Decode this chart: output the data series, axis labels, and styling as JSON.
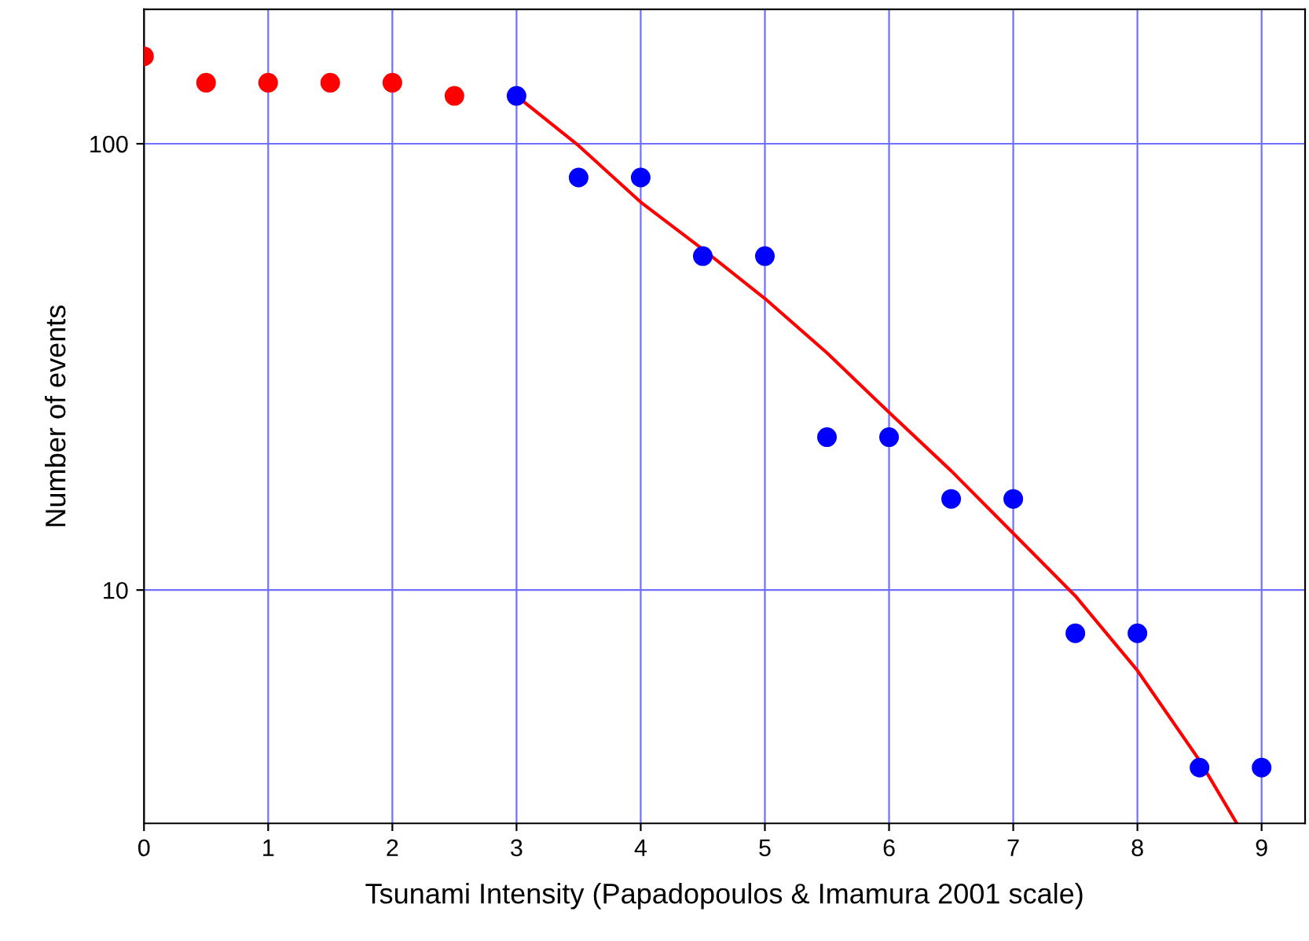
{
  "chart_data": {
    "type": "scatter",
    "xlabel": "Tsunami Intensity (Papadopoulos & Imamura 2001 scale)",
    "ylabel": "Number of events",
    "log": "y",
    "xlim": [
      0,
      9.35
    ],
    "ylim": [
      3,
      200
    ],
    "xticks": [
      0,
      1,
      2,
      3,
      4,
      5,
      6,
      7,
      8,
      9
    ],
    "yticks": [
      10,
      100
    ],
    "grid": true,
    "marker": "circle",
    "series": [
      {
        "color": "#ff0000",
        "x": [
          0,
          0.5,
          1,
          1.5,
          2,
          2.5
        ],
        "values": [
          157,
          137,
          137,
          137,
          137,
          128
        ]
      },
      {
        "color": "#0000ff",
        "x": [
          3,
          3.5,
          4,
          4.5,
          5,
          5.5,
          6,
          6.5,
          7,
          7.5,
          8,
          8.5,
          9
        ],
        "values": [
          128,
          84,
          84,
          56,
          56,
          22,
          22,
          16,
          16,
          8,
          8,
          4,
          4
        ]
      },
      {
        "type": "line",
        "color": "#ff0000",
        "marker": "none",
        "x": [
          3,
          3.5,
          4,
          4.5,
          5,
          5.5,
          6,
          6.5,
          7,
          7.5,
          8,
          8.5,
          8.8
        ],
        "values": [
          128,
          99,
          74,
          58,
          45,
          34,
          25,
          18.5,
          13.4,
          9.7,
          6.6,
          4.15,
          3
        ]
      }
    ]
  }
}
